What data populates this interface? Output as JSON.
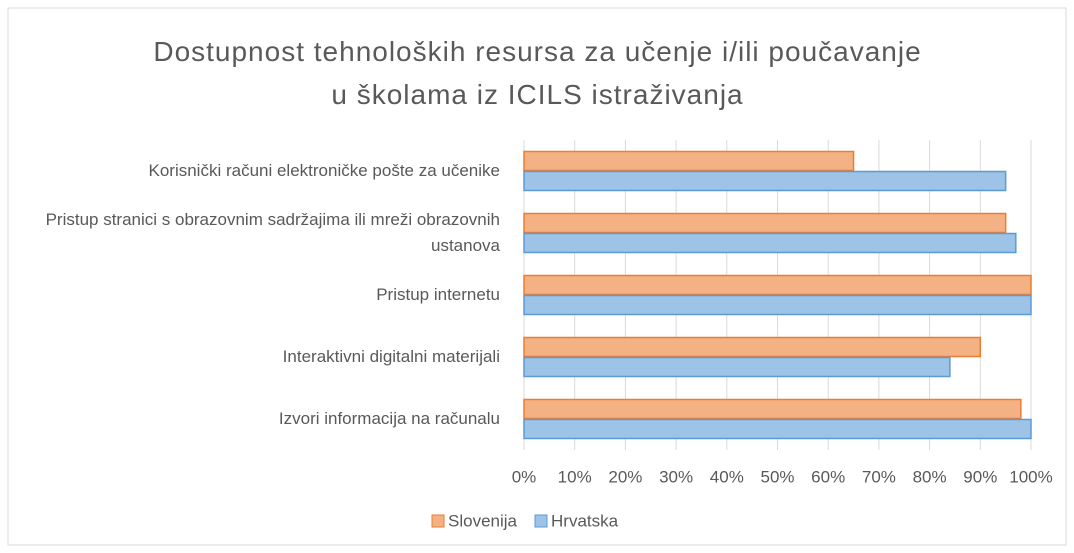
{
  "chart_data": {
    "type": "hbar",
    "title": "Dostupnost tehnoloških resursa za učenje i/ili poučavanje u školama iz ICILS istraživanja",
    "categories": [
      "Korisnički računi elektroničke pošte za učenike",
      "Pristup stranici s obrazovnim sadržajima ili mreži obrazovnih ustanova",
      "Pristup internetu",
      "Interaktivni digitalni materijali",
      "Izvori informacija na računalu"
    ],
    "series": [
      {
        "name": "Slovenija",
        "color": "#f4b183",
        "values": [
          65,
          95,
          100,
          90,
          98
        ]
      },
      {
        "name": "Hrvatska",
        "color": "#9dc3e6",
        "values": [
          95,
          97,
          100,
          84,
          100
        ]
      }
    ],
    "xlim": [
      0,
      100
    ],
    "xticks": [
      {
        "value": 0,
        "label": "0%"
      },
      {
        "value": 10,
        "label": "10%"
      },
      {
        "value": 20,
        "label": "20%"
      },
      {
        "value": 30,
        "label": "30%"
      },
      {
        "value": 40,
        "label": "40%"
      },
      {
        "value": 50,
        "label": "50%"
      },
      {
        "value": 60,
        "label": "60%"
      },
      {
        "value": 70,
        "label": "70%"
      },
      {
        "value": 80,
        "label": "80%"
      },
      {
        "value": 90,
        "label": "90%"
      },
      {
        "value": 100,
        "label": "100%"
      }
    ],
    "grid": true,
    "legend": "bottom"
  }
}
